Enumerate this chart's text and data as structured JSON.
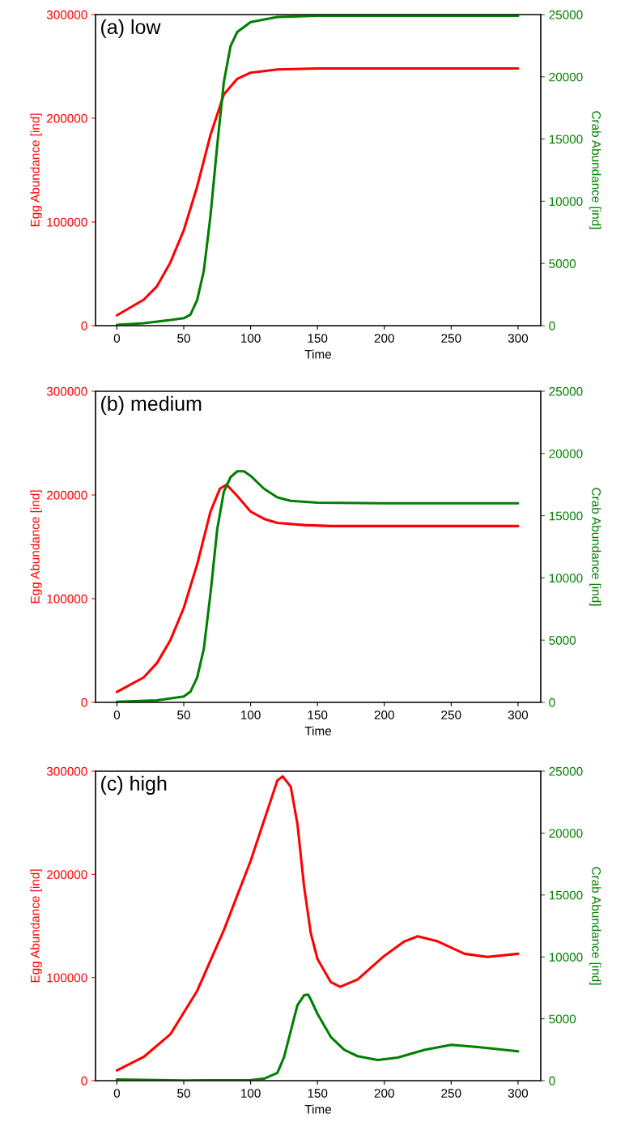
{
  "chart_data": [
    {
      "type": "line",
      "xlabel": "Time",
      "ylabel": "Egg Abundance [ind]",
      "y2label": "Crab Abundance [ind]",
      "annotations": [
        "(a) low"
      ],
      "xlim": [
        -16,
        317
      ],
      "xticks": [
        0,
        50,
        100,
        150,
        200,
        250,
        300
      ],
      "ylim": [
        0,
        300000
      ],
      "yticks": [
        0,
        100000,
        200000,
        300000
      ],
      "y2lim": [
        0,
        25000
      ],
      "y2ticks": [
        0,
        5000,
        10000,
        15000,
        20000,
        25000
      ],
      "grid": false,
      "marker": "none",
      "line_style": "solid",
      "series": [
        {
          "color": "#ff0000",
          "x": [
            0,
            20,
            30,
            40,
            50,
            60,
            70,
            80,
            90,
            100,
            120,
            150,
            200,
            300
          ],
          "values": [
            10000,
            25000,
            38000,
            61000,
            92000,
            134000,
            184000,
            223000,
            238000,
            244000,
            247000,
            248000,
            248000,
            248000
          ]
        },
        {
          "color": "#008000",
          "axis": "y2",
          "x": [
            0,
            20,
            40,
            50,
            55,
            60,
            65,
            70,
            75,
            80,
            85,
            90,
            100,
            120,
            150,
            200,
            300
          ],
          "values": [
            70,
            200,
            450,
            600,
            890,
            2060,
            4400,
            8850,
            14470,
            19600,
            22470,
            23600,
            24400,
            24800,
            24900,
            24900,
            24900
          ]
        }
      ]
    },
    {
      "type": "line",
      "xlabel": "Time",
      "ylabel": "Egg Abundance [ind]",
      "y2label": "Crab Abundance [ind]",
      "annotations": [
        "(b) medium"
      ],
      "xlim": [
        -16,
        317
      ],
      "xticks": [
        0,
        50,
        100,
        150,
        200,
        250,
        300
      ],
      "ylim": [
        0,
        300000
      ],
      "yticks": [
        0,
        100000,
        200000,
        300000
      ],
      "y2lim": [
        0,
        25000
      ],
      "y2ticks": [
        0,
        5000,
        10000,
        15000,
        20000,
        25000
      ],
      "grid": false,
      "marker": "none",
      "line_style": "solid",
      "series": [
        {
          "color": "#ff0000",
          "x": [
            0,
            20,
            30,
            40,
            50,
            60,
            70,
            77,
            82,
            90,
            100,
            110,
            120,
            140,
            160,
            200,
            300
          ],
          "values": [
            10000,
            24000,
            38000,
            60000,
            91000,
            133000,
            184000,
            206000,
            210000,
            199000,
            184000,
            177000,
            173000,
            171000,
            170000,
            170000,
            170000
          ]
        },
        {
          "color": "#008000",
          "axis": "y2",
          "x": [
            0,
            30,
            50,
            55,
            60,
            65,
            70,
            75,
            80,
            85,
            90,
            95,
            100,
            110,
            120,
            130,
            150,
            200,
            300
          ],
          "values": [
            50,
            160,
            470,
            860,
            2000,
            4300,
            8760,
            13900,
            16940,
            18100,
            18570,
            18570,
            18200,
            17170,
            16470,
            16190,
            16050,
            16000,
            16000
          ]
        }
      ]
    },
    {
      "type": "line",
      "xlabel": "Time",
      "ylabel": "Egg Abundance [ind]",
      "y2label": "Crab Abundance [ind]",
      "annotations": [
        "(c) high"
      ],
      "xlim": [
        -16,
        317
      ],
      "xticks": [
        0,
        50,
        100,
        150,
        200,
        250,
        300
      ],
      "ylim": [
        0,
        300000
      ],
      "yticks": [
        0,
        100000,
        200000,
        300000
      ],
      "y2lim": [
        0,
        25000
      ],
      "y2ticks": [
        0,
        5000,
        10000,
        15000,
        20000,
        25000
      ],
      "grid": false,
      "marker": "none",
      "line_style": "solid",
      "series": [
        {
          "color": "#ff0000",
          "x": [
            0,
            20,
            40,
            60,
            80,
            100,
            110,
            120,
            124,
            130,
            135,
            140,
            145,
            150,
            160,
            167,
            180,
            200,
            215,
            225,
            240,
            260,
            277,
            300
          ],
          "values": [
            10000,
            23000,
            45000,
            87000,
            146000,
            213000,
            252000,
            291000,
            295000,
            285000,
            249000,
            188000,
            143000,
            118000,
            95500,
            91000,
            98000,
            121000,
            135000,
            140000,
            135000,
            123000,
            120000,
            123000
          ]
        },
        {
          "color": "#008000",
          "axis": "y2",
          "x": [
            0,
            50,
            100,
            110,
            120,
            125,
            130,
            135,
            140,
            143,
            145,
            150,
            160,
            170,
            180,
            195,
            210,
            230,
            250,
            270,
            300
          ],
          "values": [
            90,
            20,
            50,
            160,
            630,
            1900,
            4000,
            6090,
            6900,
            6950,
            6560,
            5400,
            3530,
            2490,
            1980,
            1670,
            1860,
            2490,
            2900,
            2720,
            2370
          ]
        }
      ]
    }
  ]
}
